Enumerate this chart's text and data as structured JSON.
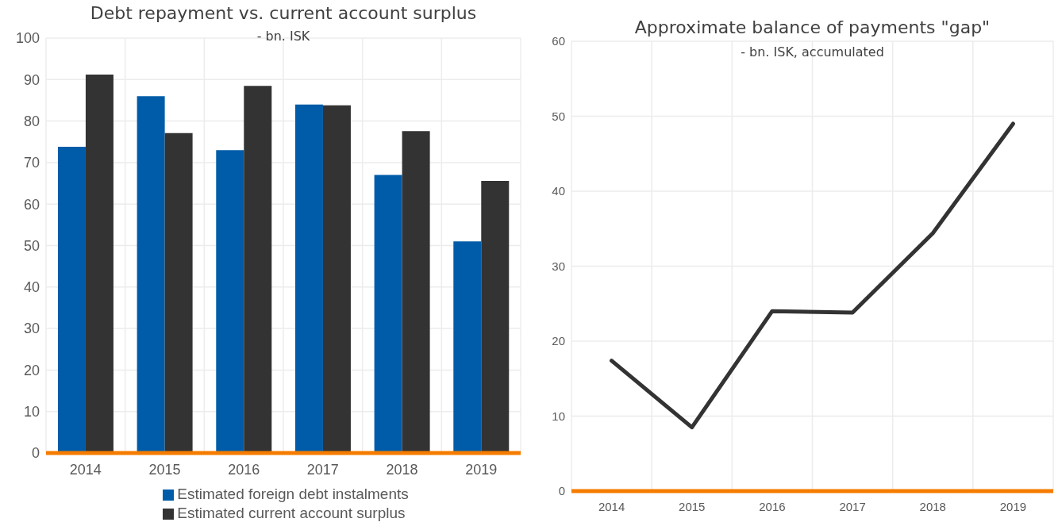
{
  "chart_data": [
    {
      "type": "bar",
      "title": "Debt repayment vs. current account surplus",
      "subtitle": "- bn. ISK",
      "categories": [
        "2014",
        "2015",
        "2016",
        "2017",
        "2018",
        "2019"
      ],
      "series": [
        {
          "name": "Estimated foreign debt instalments",
          "color": "#005ca9",
          "values": [
            73.8,
            86,
            73,
            84,
            67,
            51
          ]
        },
        {
          "name": "Estimated current account surplus",
          "color": "#333333",
          "values": [
            91.2,
            77.1,
            88.5,
            83.8,
            77.6,
            65.6
          ]
        }
      ],
      "ylim": [
        0,
        100
      ],
      "yticks": [
        0,
        10,
        20,
        30,
        40,
        50,
        60,
        70,
        80,
        90,
        100
      ],
      "grid": true,
      "legend": "bottom"
    },
    {
      "type": "line",
      "title": "Approximate balance of payments \"gap\"",
      "subtitle": "- bn. ISK, accumulated",
      "categories": [
        "2014",
        "2015",
        "2016",
        "2017",
        "2018",
        "2019"
      ],
      "series": [
        {
          "color": "#333333",
          "values": [
            17.4,
            8.5,
            24,
            23.8,
            34.4,
            49
          ]
        }
      ],
      "ylim": [
        0,
        60
      ],
      "yticks": [
        0,
        10,
        20,
        30,
        40,
        50,
        60
      ],
      "grid": true,
      "marker": "none",
      "line_style": "solid"
    }
  ]
}
